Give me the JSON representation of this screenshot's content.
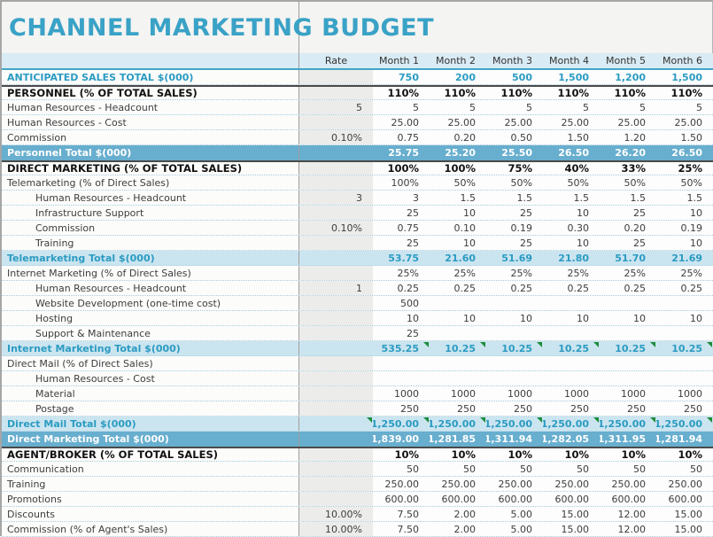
{
  "title": "CHANNEL MARKETING BUDGET",
  "columns": {
    "rate": "Rate",
    "months": [
      "Month 1",
      "Month 2",
      "Month 3",
      "Month 4",
      "Month 5",
      "Month 6"
    ]
  },
  "colors": {
    "title_teal": "#3aa2c6",
    "header_bg": "#d9ebf4",
    "band_dark_bg": "#68aece",
    "band_light_bg": "#cbe5f0",
    "teal_text": "#2b9bc2",
    "flag_green": "#1e8c3c"
  },
  "rows": [
    {
      "label": "ANTICIPATED SALES TOTAL $(000)",
      "type": "anticipated",
      "indent": 0,
      "rate": "",
      "values": [
        "750",
        "200",
        "500",
        "1,500",
        "1,200",
        "1,500"
      ]
    },
    {
      "label": "PERSONNEL (% OF TOTAL SALES)",
      "type": "section",
      "indent": 0,
      "rate": "",
      "values": [
        "110%",
        "110%",
        "110%",
        "110%",
        "110%",
        "110%"
      ]
    },
    {
      "label": "Human Resources - Headcount",
      "type": "detail",
      "indent": 0,
      "rate": "5",
      "values": [
        "5",
        "5",
        "5",
        "5",
        "5",
        "5"
      ]
    },
    {
      "label": "Human Resources - Cost",
      "type": "detail",
      "indent": 0,
      "rate": "",
      "values": [
        "25.00",
        "25.00",
        "25.00",
        "25.00",
        "25.00",
        "25.00"
      ]
    },
    {
      "label": "Commission",
      "type": "detail",
      "indent": 0,
      "rate": "0.10%",
      "values": [
        "0.75",
        "0.20",
        "0.50",
        "1.50",
        "1.20",
        "1.50"
      ]
    },
    {
      "label": "Personnel Total $(000)",
      "type": "band-dark",
      "indent": 0,
      "rate": "",
      "values": [
        "25.75",
        "25.20",
        "25.50",
        "26.50",
        "26.20",
        "26.50"
      ]
    },
    {
      "label": "DIRECT MARKETING (% OF TOTAL SALES)",
      "type": "section",
      "indent": 0,
      "rate": "",
      "values": [
        "100%",
        "100%",
        "75%",
        "40%",
        "33%",
        "25%"
      ]
    },
    {
      "label": "Telemarketing (% of Direct Sales)",
      "type": "detail",
      "indent": 0,
      "rate": "",
      "values": [
        "100%",
        "50%",
        "50%",
        "50%",
        "50%",
        "50%"
      ]
    },
    {
      "label": "Human Resources - Headcount",
      "type": "detail",
      "indent": 1,
      "rate": "3",
      "values": [
        "3",
        "1.5",
        "1.5",
        "1.5",
        "1.5",
        "1.5"
      ]
    },
    {
      "label": "Infrastructure Support",
      "type": "detail",
      "indent": 1,
      "rate": "",
      "values": [
        "25",
        "10",
        "25",
        "10",
        "25",
        "10"
      ]
    },
    {
      "label": "Commission",
      "type": "detail",
      "indent": 1,
      "rate": "0.10%",
      "values": [
        "0.75",
        "0.10",
        "0.19",
        "0.30",
        "0.20",
        "0.19"
      ]
    },
    {
      "label": "Training",
      "type": "detail",
      "indent": 1,
      "rate": "",
      "values": [
        "25",
        "10",
        "25",
        "10",
        "25",
        "10"
      ]
    },
    {
      "label": "Telemarketing Total $(000)",
      "type": "band-light",
      "indent": 0,
      "rate": "",
      "values": [
        "53.75",
        "21.60",
        "51.69",
        "21.80",
        "51.70",
        "21.69"
      ]
    },
    {
      "label": "Internet Marketing (% of Direct Sales)",
      "type": "detail",
      "indent": 0,
      "rate": "",
      "values": [
        "25%",
        "25%",
        "25%",
        "25%",
        "25%",
        "25%"
      ]
    },
    {
      "label": "Human Resources - Headcount",
      "type": "detail",
      "indent": 1,
      "rate": "1",
      "values": [
        "0.25",
        "0.25",
        "0.25",
        "0.25",
        "0.25",
        "0.25"
      ]
    },
    {
      "label": "Website Development (one-time cost)",
      "type": "detail",
      "indent": 1,
      "rate": "",
      "values": [
        "500",
        "",
        "",
        "",
        "",
        ""
      ]
    },
    {
      "label": "Hosting",
      "type": "detail",
      "indent": 1,
      "rate": "",
      "values": [
        "10",
        "10",
        "10",
        "10",
        "10",
        "10"
      ]
    },
    {
      "label": "Support & Maintenance",
      "type": "detail",
      "indent": 1,
      "rate": "",
      "values": [
        "25",
        "",
        "",
        "",
        "",
        ""
      ]
    },
    {
      "label": "Internet Marketing Total $(000)",
      "type": "band-light",
      "indent": 0,
      "rate": "",
      "rate_flag": false,
      "flags": [
        0,
        1,
        2,
        3,
        4,
        5
      ],
      "values": [
        "535.25",
        "10.25",
        "10.25",
        "10.25",
        "10.25",
        "10.25"
      ]
    },
    {
      "label": "Direct Mail (% of Direct Sales)",
      "type": "detail",
      "indent": 0,
      "rate": "",
      "values": [
        "",
        "",
        "",
        "",
        "",
        ""
      ]
    },
    {
      "label": "Human Resources - Cost",
      "type": "detail",
      "indent": 1,
      "rate": "",
      "values": [
        "",
        "",
        "",
        "",
        "",
        ""
      ]
    },
    {
      "label": "Material",
      "type": "detail",
      "indent": 1,
      "rate": "",
      "values": [
        "1000",
        "1000",
        "1000",
        "1000",
        "1000",
        "1000"
      ]
    },
    {
      "label": "Postage",
      "type": "detail",
      "indent": 1,
      "rate": "",
      "values": [
        "250",
        "250",
        "250",
        "250",
        "250",
        "250"
      ]
    },
    {
      "label": "Direct Mail Total $(000)",
      "type": "band-light",
      "indent": 0,
      "rate": "",
      "rate_flag": true,
      "flags": [
        0,
        1,
        2,
        3,
        4,
        5
      ],
      "values": [
        "1,250.00",
        "1,250.00",
        "1,250.00",
        "1,250.00",
        "1,250.00",
        "1,250.00"
      ]
    },
    {
      "label": "Direct Marketing Total $(000)",
      "type": "band-dark",
      "indent": 0,
      "rate": "",
      "values": [
        "1,839.00",
        "1,281.85",
        "1,311.94",
        "1,282.05",
        "1,311.95",
        "1,281.94"
      ]
    },
    {
      "label": "AGENT/BROKER (% OF TOTAL SALES)",
      "type": "section",
      "indent": 0,
      "rate": "",
      "values": [
        "10%",
        "10%",
        "10%",
        "10%",
        "10%",
        "10%"
      ]
    },
    {
      "label": "Communication",
      "type": "detail",
      "indent": 0,
      "rate": "",
      "values": [
        "50",
        "50",
        "50",
        "50",
        "50",
        "50"
      ]
    },
    {
      "label": "Training",
      "type": "detail",
      "indent": 0,
      "rate": "",
      "values": [
        "250.00",
        "250.00",
        "250.00",
        "250.00",
        "250.00",
        "250.00"
      ]
    },
    {
      "label": "Promotions",
      "type": "detail",
      "indent": 0,
      "rate": "",
      "values": [
        "600.00",
        "600.00",
        "600.00",
        "600.00",
        "600.00",
        "600.00"
      ]
    },
    {
      "label": "Discounts",
      "type": "detail",
      "indent": 0,
      "rate": "10.00%",
      "values": [
        "7.50",
        "2.00",
        "5.00",
        "15.00",
        "12.00",
        "15.00"
      ]
    },
    {
      "label": "Commission (% of Agent's Sales)",
      "type": "detail",
      "indent": 0,
      "rate": "10.00%",
      "values": [
        "7.50",
        "2.00",
        "5.00",
        "15.00",
        "12.00",
        "15.00"
      ]
    }
  ]
}
